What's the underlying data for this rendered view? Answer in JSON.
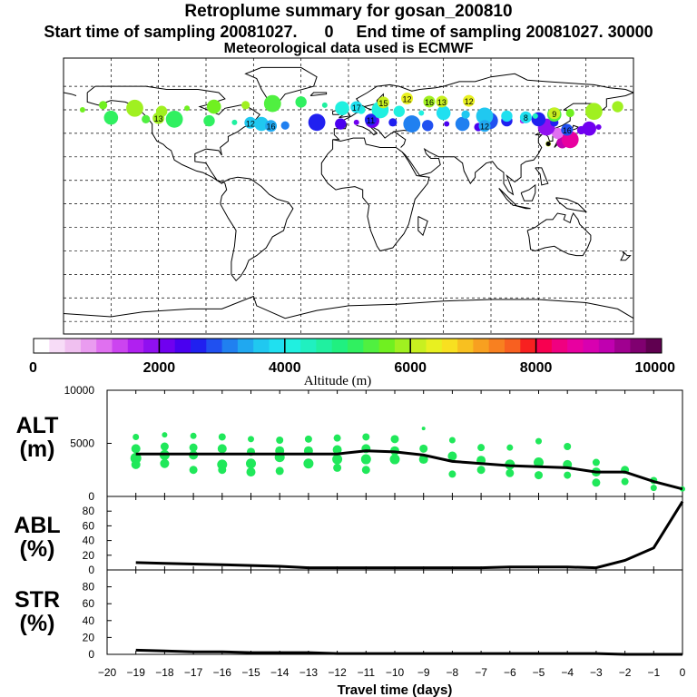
{
  "header": {
    "title": "Retroplume summary for gosan_200810",
    "sampling_line": "Start time of sampling 20081027.      0     End time of sampling 20081027. 30000",
    "met_line": "Meteorological data used is ECMWF"
  },
  "colorbar": {
    "tick_labels": [
      "0",
      "2000",
      "4000",
      "6000",
      "8000",
      "10000"
    ],
    "label": "Altitude (m)",
    "range": [
      0,
      10000
    ],
    "colors": [
      "#ffffff",
      "#f7dcf7",
      "#f0c0f0",
      "#ea9cf0",
      "#e070f0",
      "#cc44f0",
      "#b020f0",
      "#9010f0",
      "#7000f0",
      "#4a00f0",
      "#2020f0",
      "#2050f0",
      "#2080f0",
      "#20a8f0",
      "#20c8f0",
      "#20e0f0",
      "#20f0e0",
      "#20f0c0",
      "#20f0a0",
      "#20f080",
      "#30f060",
      "#50f040",
      "#70f020",
      "#a0f020",
      "#c8f020",
      "#e8f020",
      "#f8e020",
      "#f8c020",
      "#f8a020",
      "#f88020",
      "#f86020",
      "#f82020",
      "#f80050",
      "#f00080",
      "#e800a0",
      "#d800b0",
      "#c000b0",
      "#a00090",
      "#800070",
      "#600050"
    ]
  },
  "map_labels": [
    {
      "text": "12",
      "lon": 37,
      "lat": 60.5,
      "c": "#e8f020"
    },
    {
      "text": "12",
      "lon": 76,
      "lat": 59,
      "c": "#e8f020"
    },
    {
      "text": "15",
      "lon": 22,
      "lat": 58,
      "c": "#c8f020"
    },
    {
      "text": "16",
      "lon": 51,
      "lat": 58.5,
      "c": "#a0f020"
    },
    {
      "text": "13",
      "lon": 59,
      "lat": 58.5,
      "c": "#c8f020"
    },
    {
      "text": "17",
      "lon": 5,
      "lat": 55,
      "c": "#20e0f0"
    },
    {
      "text": "9",
      "lon": 130,
      "lat": 51,
      "c": "#c8f020"
    },
    {
      "text": "8",
      "lon": 112,
      "lat": 48.5,
      "c": "#20e0f0"
    },
    {
      "text": "13",
      "lon": -120,
      "lat": 48,
      "c": "#a0f020"
    },
    {
      "text": "12",
      "lon": -62,
      "lat": 45,
      "c": "#20c8f0"
    },
    {
      "text": "16",
      "lon": -49,
      "lat": 43,
      "c": "#20a8f0"
    },
    {
      "text": "11",
      "lon": 14,
      "lat": 47,
      "c": "#2020f0"
    },
    {
      "text": "12",
      "lon": 86,
      "lat": 43,
      "c": "#20a8f0"
    },
    {
      "text": "16",
      "lon": 138,
      "lat": 40.5,
      "c": "#2050f0"
    }
  ],
  "chart_data": [
    {
      "type": "map",
      "name": "retroplume-map",
      "xlim": [
        -180,
        180
      ],
      "ylim": [
        -90,
        90
      ],
      "grid": true,
      "points": [
        {
          "lon": 126.2,
          "lat": 33.3,
          "alt": 6000
        },
        {
          "lon": 135,
          "lat": 34,
          "alt": 9200
        },
        {
          "lon": 140,
          "lat": 36,
          "alt": 8700
        },
        {
          "lon": 147,
          "lat": 42,
          "alt": 2100
        },
        {
          "lon": 152,
          "lat": 43,
          "alt": 2000
        },
        {
          "lon": 158,
          "lat": 44,
          "alt": 2200
        },
        {
          "lon": 132,
          "lat": 40,
          "alt": 1100
        },
        {
          "lon": 125,
          "lat": 44,
          "alt": 1800
        },
        {
          "lon": 130,
          "lat": 47,
          "alt": 2500
        },
        {
          "lon": 120,
          "lat": 49,
          "alt": 2700
        },
        {
          "lon": 110,
          "lat": 48,
          "alt": 1500
        },
        {
          "lon": 100,
          "lat": 48,
          "alt": 2600
        },
        {
          "lon": 89,
          "lat": 48,
          "alt": 2800
        },
        {
          "lon": 82,
          "lat": 44,
          "alt": 2300
        },
        {
          "lon": 72,
          "lat": 46,
          "alt": 3000
        },
        {
          "lon": 62,
          "lat": 46,
          "alt": 2400
        },
        {
          "lon": 50,
          "lat": 45,
          "alt": 2800
        },
        {
          "lon": 40,
          "lat": 46,
          "alt": 3000
        },
        {
          "lon": 28,
          "lat": 47,
          "alt": 2500
        },
        {
          "lon": 15,
          "lat": 48,
          "alt": 2200
        },
        {
          "lon": 5,
          "lat": 47,
          "alt": 2000
        },
        {
          "lon": -5,
          "lat": 46,
          "alt": 2300
        },
        {
          "lon": -20,
          "lat": 47,
          "alt": 2600
        },
        {
          "lon": -40,
          "lat": 45,
          "alt": 3200
        },
        {
          "lon": -55,
          "lat": 46,
          "alt": 3600
        },
        {
          "lon": -72,
          "lat": 47,
          "alt": 4600
        },
        {
          "lon": -88,
          "lat": 48,
          "alt": 5000
        },
        {
          "lon": -110,
          "lat": 49,
          "alt": 5200
        },
        {
          "lon": -128,
          "lat": 49,
          "alt": 5400
        },
        {
          "lon": -150,
          "lat": 50,
          "alt": 5000
        },
        {
          "lon": -168,
          "lat": 55,
          "alt": 5600
        },
        {
          "lon": 170,
          "lat": 57,
          "alt": 5800
        },
        {
          "lon": 155,
          "lat": 54,
          "alt": 5900
        },
        {
          "lon": 140,
          "lat": 53,
          "alt": 5600
        },
        {
          "lon": 130,
          "lat": 52,
          "alt": 5300
        },
        {
          "lon": 118,
          "lat": 51,
          "alt": 4400
        },
        {
          "lon": 100,
          "lat": 51,
          "alt": 3800
        },
        {
          "lon": 86,
          "lat": 51,
          "alt": 3700
        },
        {
          "lon": 74,
          "lat": 52,
          "alt": 3600
        },
        {
          "lon": 60,
          "lat": 53,
          "alt": 3900
        },
        {
          "lon": 46,
          "lat": 53,
          "alt": 4000
        },
        {
          "lon": 32,
          "lat": 54,
          "alt": 4100
        },
        {
          "lon": 20,
          "lat": 55,
          "alt": 4100
        },
        {
          "lon": 8,
          "lat": 55,
          "alt": 4000
        },
        {
          "lon": -4,
          "lat": 56,
          "alt": 4200
        },
        {
          "lon": -15,
          "lat": 58,
          "alt": 4600
        },
        {
          "lon": -30,
          "lat": 60,
          "alt": 5000
        },
        {
          "lon": -48,
          "lat": 59,
          "alt": 5300
        },
        {
          "lon": -65,
          "lat": 58,
          "alt": 5800
        },
        {
          "lon": -85,
          "lat": 57,
          "alt": 5500
        },
        {
          "lon": -102,
          "lat": 56,
          "alt": 5600
        },
        {
          "lon": -118,
          "lat": 54,
          "alt": 5800
        },
        {
          "lon": -135,
          "lat": 56,
          "alt": 5900
        },
        {
          "lon": -155,
          "lat": 58,
          "alt": 5700
        }
      ]
    },
    {
      "type": "scatter+line",
      "name": "ALT",
      "ylabel_lines": [
        "ALT",
        "(m)"
      ],
      "xlim": [
        -20,
        0
      ],
      "ylim": [
        0,
        10000
      ],
      "yticks": [
        0,
        5000,
        10000
      ],
      "line_x": [
        -19,
        -18,
        -17,
        -16,
        -15,
        -14,
        -13,
        -12,
        -11,
        -10,
        -9,
        -8,
        -7,
        -6,
        -5,
        -4,
        -3,
        -2,
        -1,
        0
      ],
      "line_y": [
        4000,
        4000,
        4000,
        4000,
        4000,
        4000,
        4000,
        4000,
        4300,
        4200,
        3900,
        3300,
        3100,
        2900,
        2800,
        2700,
        2300,
        2300,
        1400,
        700
      ],
      "points_x": [
        -19,
        -19,
        -19,
        -19,
        -18,
        -18,
        -18,
        -18,
        -17,
        -17,
        -17,
        -17,
        -16,
        -16,
        -16,
        -16,
        -15,
        -15,
        -15,
        -15,
        -14,
        -14,
        -14,
        -14,
        -13,
        -13,
        -13,
        -12,
        -12,
        -12,
        -12,
        -11,
        -11,
        -11,
        -11,
        -10,
        -10,
        -10,
        -9,
        -9,
        -9,
        -8,
        -8,
        -8,
        -7,
        -7,
        -7,
        -6,
        -6,
        -6,
        -5,
        -5,
        -5,
        -4,
        -4,
        -4,
        -3,
        -3,
        -3,
        -2,
        -2,
        -1,
        -1,
        0
      ],
      "points_y": [
        5600,
        4500,
        3600,
        3000,
        5800,
        4700,
        3900,
        3100,
        5700,
        4600,
        3900,
        2500,
        5600,
        4500,
        3000,
        2500,
        5400,
        4200,
        3100,
        2300,
        5300,
        4300,
        3700,
        2400,
        5400,
        4300,
        3100,
        5500,
        4400,
        3500,
        2700,
        5600,
        4500,
        3500,
        2500,
        5400,
        4300,
        3500,
        6400,
        4500,
        3500,
        5300,
        3800,
        2100,
        4600,
        3400,
        2500,
        4600,
        3000,
        2200,
        5200,
        3200,
        2000,
        4700,
        3000,
        2000,
        3200,
        2300,
        1300,
        2500,
        1400,
        1500,
        800,
        700
      ],
      "points_r": [
        3.5,
        5,
        6,
        5,
        3,
        4.5,
        5.5,
        5,
        3.5,
        4.5,
        5,
        4.5,
        4,
        5,
        5.5,
        4.5,
        3.5,
        4.5,
        5.5,
        5,
        4,
        5,
        5.5,
        4.5,
        4,
        5,
        5.5,
        4,
        5,
        5.5,
        4.5,
        4,
        5,
        5.5,
        4.5,
        4.5,
        5,
        5.5,
        2,
        4.5,
        5,
        3.5,
        5,
        4,
        4,
        5,
        4.5,
        3.5,
        5.5,
        4.5,
        3.5,
        5.5,
        4.5,
        4,
        5,
        4,
        4,
        5,
        4.5,
        4.5,
        4,
        4,
        3.5,
        3
      ]
    },
    {
      "type": "line",
      "name": "ABL",
      "ylabel_lines": [
        "ABL",
        "(%)"
      ],
      "xlim": [
        -20,
        0
      ],
      "ylim": [
        0,
        100
      ],
      "yticks": [
        0,
        20,
        40,
        60,
        80
      ],
      "x": [
        -19,
        -18,
        -17,
        -16,
        -15,
        -14,
        -13,
        -12,
        -11,
        -10,
        -9,
        -8,
        -7,
        -6,
        -5,
        -4,
        -3,
        -2,
        -1,
        0
      ],
      "y": [
        10,
        9,
        8,
        7,
        6,
        5,
        3,
        3,
        3,
        3,
        3,
        3,
        3,
        4,
        4,
        4,
        3,
        13,
        30,
        93
      ]
    },
    {
      "type": "line",
      "name": "STR",
      "ylabel_lines": [
        "STR",
        "(%)"
      ],
      "xlim": [
        -20,
        0
      ],
      "ylim": [
        0,
        100
      ],
      "yticks": [
        0,
        20,
        40,
        60,
        80
      ],
      "x": [
        -19,
        -18,
        -17,
        -16,
        -15,
        -14,
        -13,
        -12,
        -11,
        -10,
        -9,
        -8,
        -7,
        -6,
        -5,
        -4,
        -3,
        -2,
        -1,
        0
      ],
      "y": [
        5,
        4,
        3,
        3,
        2,
        2,
        2,
        1,
        1,
        1,
        1,
        1,
        1,
        1,
        1,
        1,
        1,
        0,
        0,
        0
      ],
      "xticks": [
        -20,
        -19,
        -18,
        -17,
        -16,
        -15,
        -14,
        -13,
        -12,
        -11,
        -10,
        -9,
        -8,
        -7,
        -6,
        -5,
        -4,
        -3,
        -2,
        -1,
        0
      ],
      "xlabel": "Travel time (days)"
    }
  ]
}
